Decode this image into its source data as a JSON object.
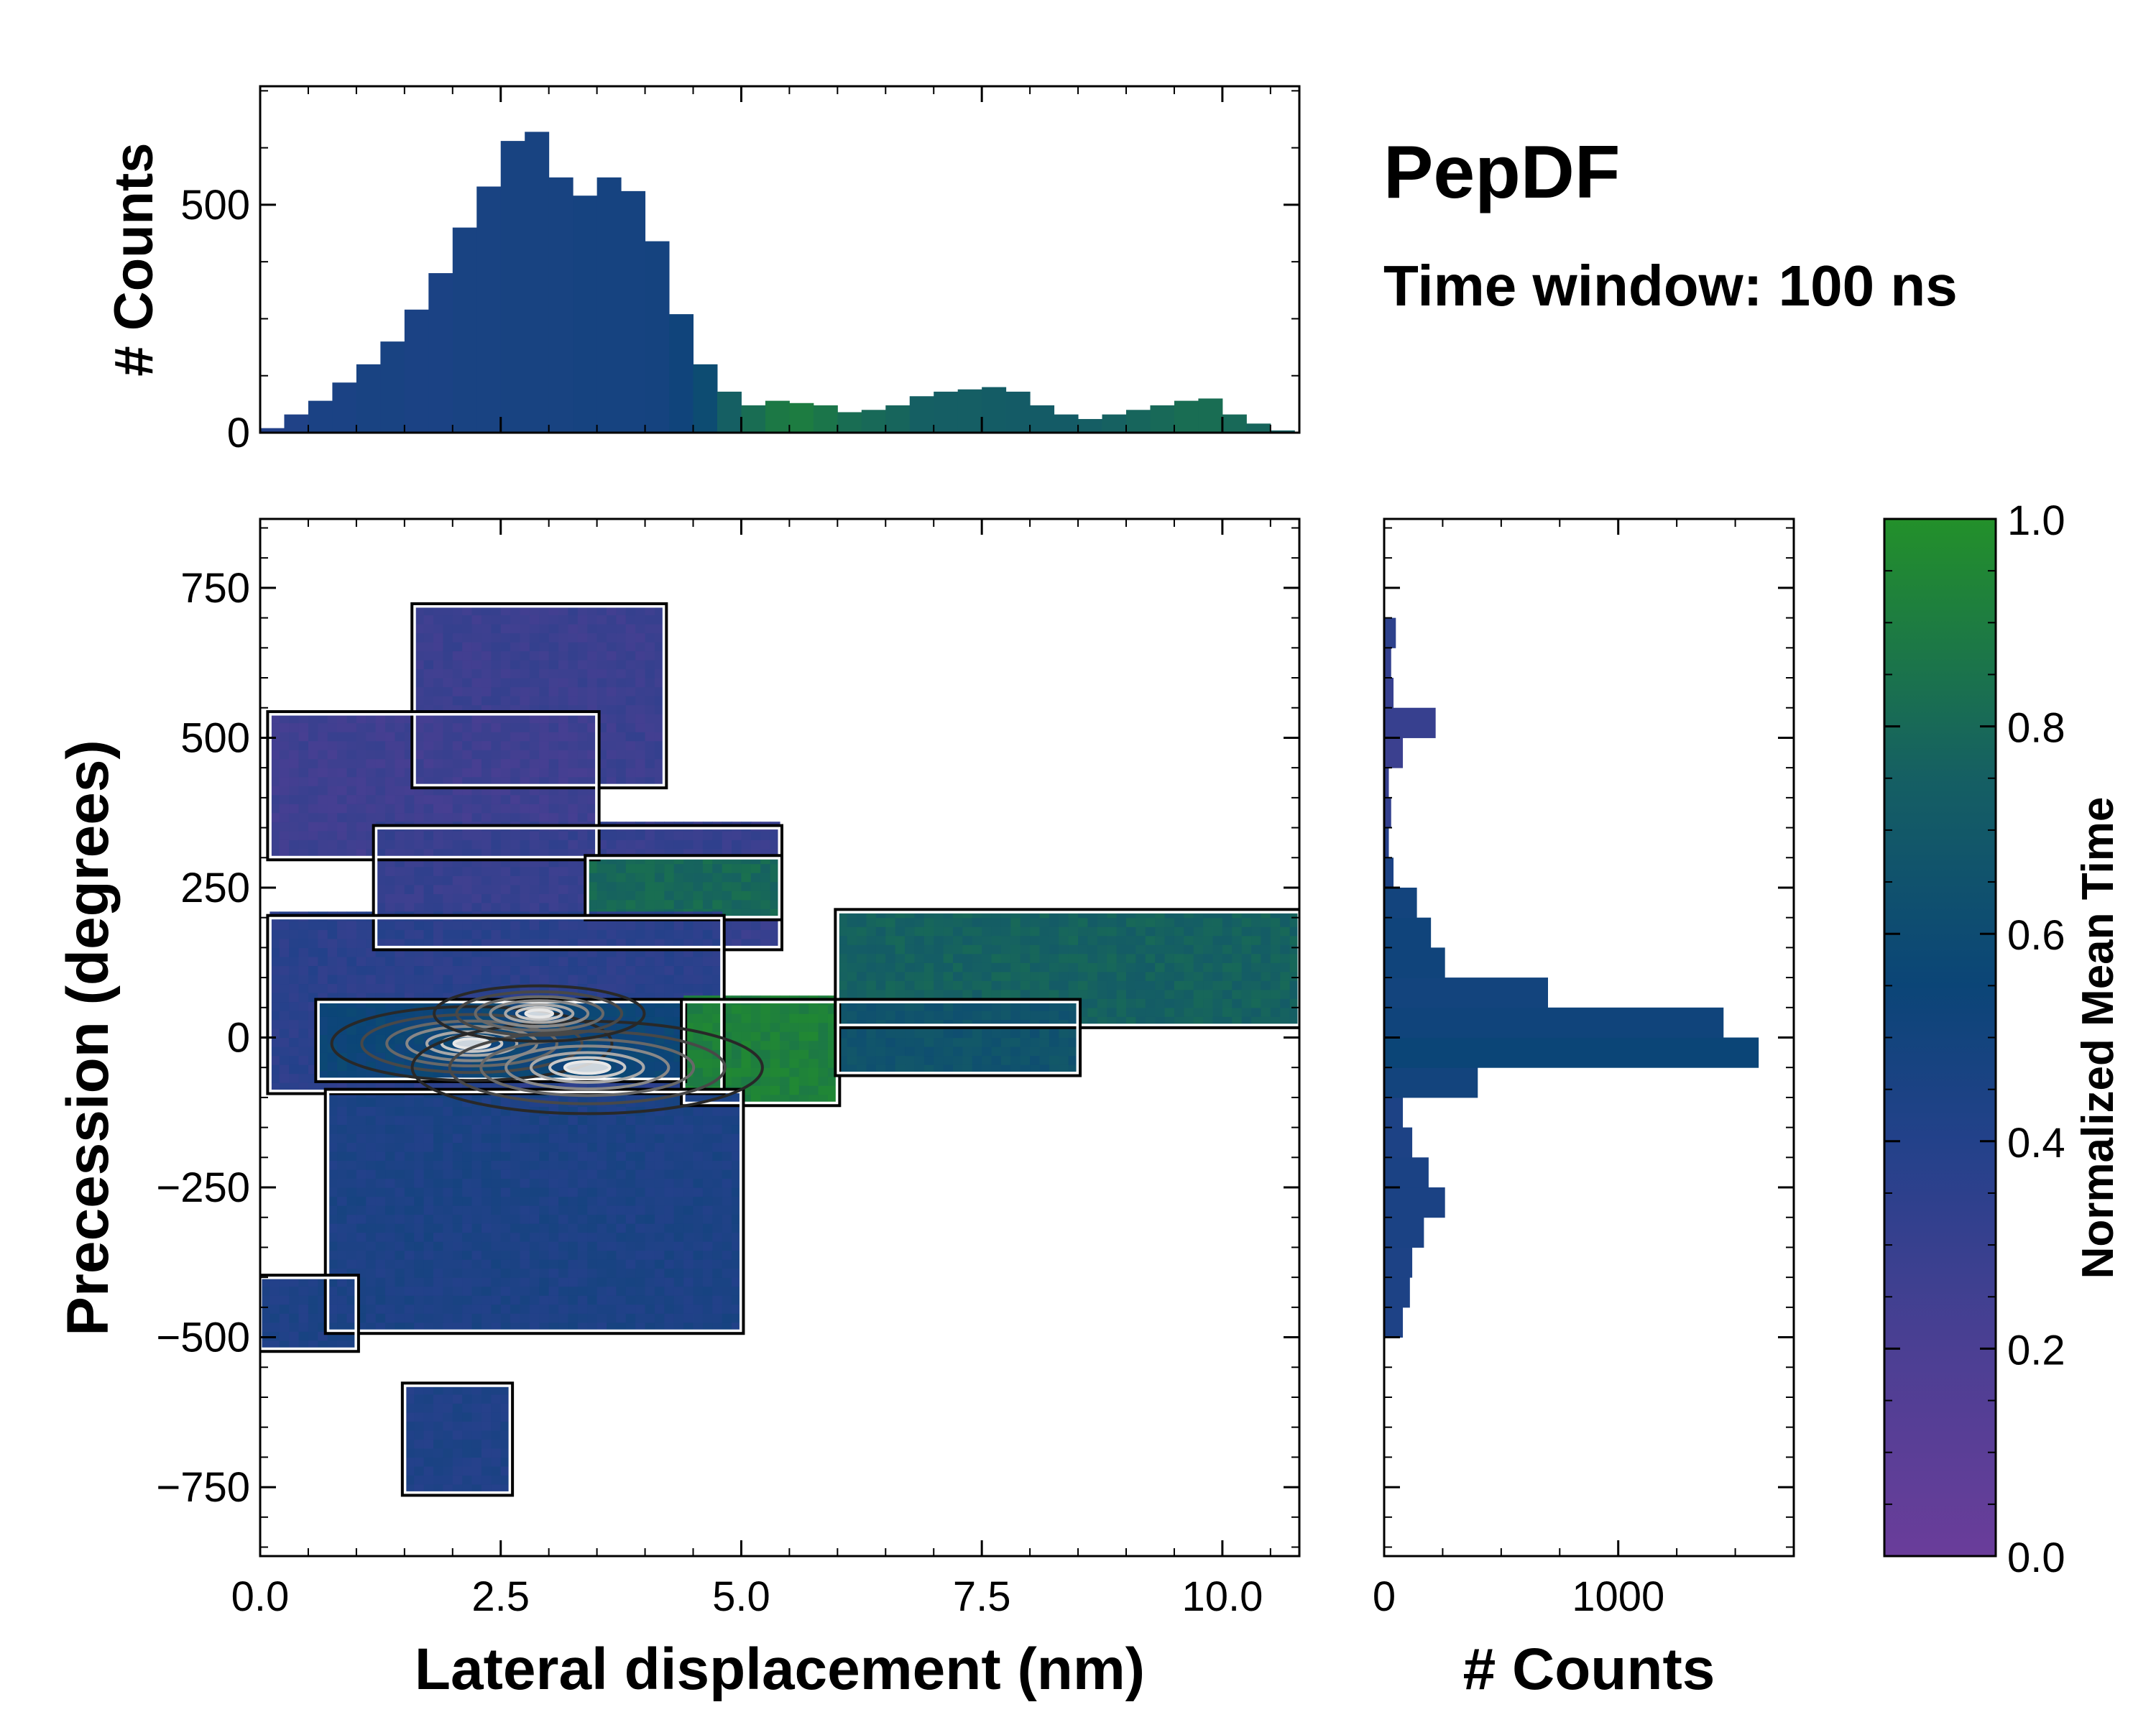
{
  "title": "PepDF",
  "subtitle": "Time window: 100 ns",
  "colors": {
    "low": "#6a3d9a",
    "mid": "#0b4577",
    "high": "#23902a"
  },
  "chart_data": [
    {
      "id": "top_histogram",
      "type": "bar",
      "ylabel": "# Counts",
      "xlim": [
        0,
        10.8
      ],
      "ylim": [
        0,
        760
      ],
      "yticks": [
        0,
        500
      ],
      "ytick_labels": [
        "0",
        "500"
      ],
      "x": [
        0.0,
        0.25,
        0.5,
        0.75,
        1.0,
        1.25,
        1.5,
        1.75,
        2.0,
        2.25,
        2.5,
        2.75,
        3.0,
        3.25,
        3.5,
        3.75,
        4.0,
        4.25,
        4.5,
        4.75,
        5.0,
        5.25,
        5.5,
        5.75,
        6.0,
        6.25,
        6.5,
        6.75,
        7.0,
        7.25,
        7.5,
        7.75,
        8.0,
        8.25,
        8.5,
        8.75,
        9.0,
        9.25,
        9.5,
        9.75,
        10.0,
        10.25,
        10.5
      ],
      "values": [
        10,
        40,
        70,
        110,
        150,
        200,
        270,
        350,
        450,
        540,
        640,
        660,
        560,
        520,
        560,
        530,
        420,
        260,
        150,
        90,
        60,
        70,
        65,
        60,
        45,
        50,
        60,
        80,
        90,
        95,
        100,
        90,
        60,
        40,
        30,
        40,
        50,
        60,
        70,
        75,
        40,
        20,
        5
      ],
      "mean_time": [
        0.4,
        0.42,
        0.45,
        0.45,
        0.46,
        0.46,
        0.45,
        0.45,
        0.46,
        0.46,
        0.47,
        0.47,
        0.47,
        0.48,
        0.48,
        0.48,
        0.49,
        0.52,
        0.6,
        0.75,
        0.82,
        0.88,
        0.9,
        0.86,
        0.82,
        0.8,
        0.78,
        0.75,
        0.74,
        0.74,
        0.73,
        0.72,
        0.72,
        0.72,
        0.74,
        0.76,
        0.78,
        0.8,
        0.82,
        0.82,
        0.8,
        0.78,
        0.76
      ]
    },
    {
      "id": "heatmap",
      "type": "heatmap",
      "xlabel": "Lateral displacement (nm)",
      "ylabel": "Precession (degrees)",
      "xlim": [
        0,
        10.8
      ],
      "ylim": [
        -865,
        865
      ],
      "xticks": [
        0,
        2.5,
        5.0,
        7.5,
        10.0
      ],
      "xtick_labels": [
        "0.0",
        "2.5",
        "5.0",
        "7.5",
        "10.0"
      ],
      "yticks": [
        -750,
        -500,
        -250,
        0,
        250,
        500,
        750
      ],
      "ytick_labels": [
        "−750",
        "−500",
        "−250",
        "0",
        "250",
        "500",
        "750"
      ],
      "regions": [
        {
          "name": "upper-lobe",
          "x_range": [
            1.6,
            4.2
          ],
          "y_range": [
            420,
            720
          ],
          "mean_time": 0.28
        },
        {
          "name": "upper-arm",
          "x_range": [
            0.1,
            3.5
          ],
          "y_range": [
            300,
            540
          ],
          "mean_time": 0.26
        },
        {
          "name": "upper-band",
          "x_range": [
            1.2,
            5.4
          ],
          "y_range": [
            150,
            350
          ],
          "mean_time": 0.3
        },
        {
          "name": "upper-green",
          "x_range": [
            3.4,
            5.4
          ],
          "y_range": [
            200,
            300
          ],
          "mean_time": 0.8
        },
        {
          "name": "core",
          "x_range": [
            0.1,
            4.8
          ],
          "y_range": [
            -90,
            200
          ],
          "mean_time": 0.36
        },
        {
          "name": "core-center",
          "x_range": [
            0.6,
            4.4
          ],
          "y_range": [
            -70,
            60
          ],
          "mean_time": 0.55
        },
        {
          "name": "green-stripe",
          "x_range": [
            4.4,
            6.0
          ],
          "y_range": [
            -110,
            60
          ],
          "mean_time": 0.92
        },
        {
          "name": "right-arm",
          "x_range": [
            6.0,
            10.8
          ],
          "y_range": [
            20,
            210
          ],
          "mean_time": 0.76
        },
        {
          "name": "right-mid",
          "x_range": [
            6.0,
            8.5
          ],
          "y_range": [
            -60,
            60
          ],
          "mean_time": 0.66
        },
        {
          "name": "lower-body",
          "x_range": [
            0.7,
            5.0
          ],
          "y_range": [
            -490,
            -90
          ],
          "mean_time": 0.44
        },
        {
          "name": "lower-left",
          "x_range": [
            0.0,
            1.0
          ],
          "y_range": [
            -520,
            -400
          ],
          "mean_time": 0.43
        },
        {
          "name": "lower-tail",
          "x_range": [
            1.5,
            2.6
          ],
          "y_range": [
            -760,
            -580
          ],
          "mean_time": 0.42
        }
      ],
      "density_peaks": [
        {
          "x": 2.2,
          "y": -10,
          "density": 0.8
        },
        {
          "x": 3.4,
          "y": -50,
          "density": 1.0
        },
        {
          "x": 2.9,
          "y": 40,
          "density": 0.6
        }
      ]
    },
    {
      "id": "right_histogram",
      "type": "bar",
      "orientation": "horizontal",
      "xlabel": "# Counts",
      "xlim": [
        0,
        1750
      ],
      "xticks": [
        0,
        1000
      ],
      "xtick_labels": [
        "0",
        "1000"
      ],
      "y": [
        -475,
        -425,
        -375,
        -325,
        -275,
        -225,
        -175,
        -125,
        -75,
        -25,
        25,
        75,
        125,
        175,
        225,
        275,
        325,
        375,
        425,
        475,
        525,
        575,
        625,
        675
      ],
      "values": [
        80,
        110,
        120,
        170,
        260,
        190,
        120,
        80,
        400,
        1600,
        1450,
        700,
        260,
        200,
        140,
        40,
        20,
        30,
        20,
        80,
        220,
        40,
        30,
        50
      ],
      "mean_time": [
        0.43,
        0.44,
        0.44,
        0.45,
        0.45,
        0.45,
        0.44,
        0.44,
        0.5,
        0.55,
        0.52,
        0.5,
        0.52,
        0.52,
        0.5,
        0.45,
        0.38,
        0.32,
        0.3,
        0.28,
        0.3,
        0.3,
        0.32,
        0.35
      ]
    },
    {
      "id": "colorbar",
      "type": "colorbar",
      "label": "Normalized Mean Time",
      "range": [
        0.0,
        1.0
      ],
      "ticks": [
        0.0,
        0.2,
        0.4,
        0.6,
        0.8,
        1.0
      ],
      "tick_labels": [
        "0.0",
        "0.2",
        "0.4",
        "0.6",
        "0.8",
        "1.0"
      ]
    }
  ]
}
